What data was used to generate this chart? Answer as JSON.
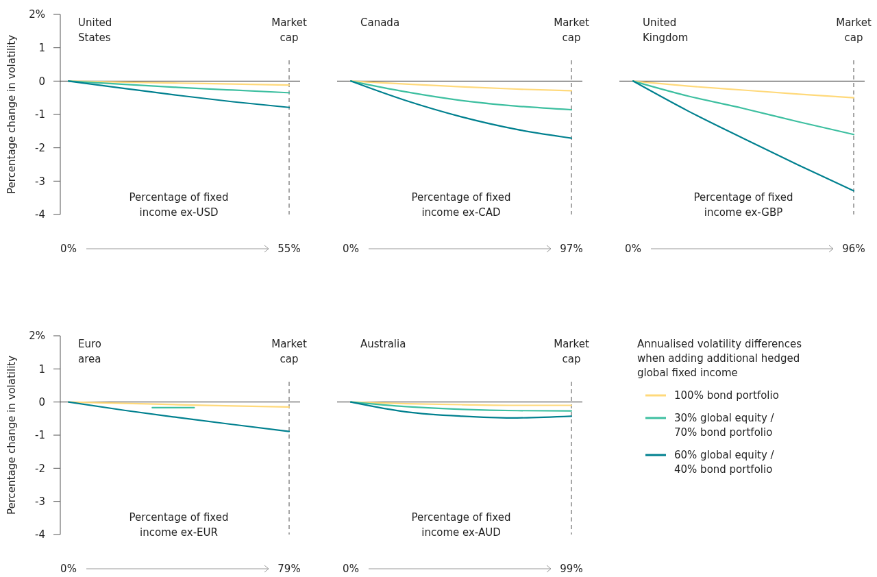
{
  "chart_data": [
    {
      "type": "line",
      "title": "United States",
      "xlabel": "Percentage of fixed income ex-USD",
      "ylabel": "Percentage change in volatility",
      "xlim": [
        0,
        55
      ],
      "xticks": [
        {
          "value": 0,
          "label": "0%"
        },
        {
          "value": 55,
          "label": "55%"
        }
      ],
      "ylim": [
        -4,
        2
      ],
      "yticks": [
        -4,
        -3,
        -2,
        -1,
        0,
        1,
        {
          "value": 2,
          "label": "2%"
        }
      ],
      "ref_lines": [
        {
          "axis": "x",
          "value": 55,
          "label": "Market cap",
          "line_style": "dashed",
          "color": "#a6a6a6"
        }
      ],
      "legend": false,
      "series": [
        {
          "color": "#ffd97a",
          "x": [
            0,
            14,
            27.5,
            41,
            55
          ],
          "values": [
            0,
            -0.03,
            -0.06,
            -0.09,
            -0.12
          ]
        },
        {
          "color": "#3dbfa0",
          "x": [
            0,
            14,
            27.5,
            41,
            55
          ],
          "values": [
            0,
            -0.1,
            -0.19,
            -0.27,
            -0.35
          ]
        },
        {
          "color": "#00808f",
          "x": [
            0,
            14,
            27.5,
            41,
            55
          ],
          "values": [
            0,
            -0.22,
            -0.43,
            -0.62,
            -0.79
          ]
        }
      ]
    },
    {
      "type": "line",
      "title": "Canada",
      "xlabel": "Percentage of fixed income ex-CAD",
      "xlim": [
        0,
        97
      ],
      "xticks": [
        {
          "value": 0,
          "label": "0%"
        },
        {
          "value": 97,
          "label": "97%"
        }
      ],
      "ylim": [
        -4,
        2
      ],
      "tick_labels": "x",
      "ref_lines": [
        {
          "axis": "x",
          "value": 97,
          "label": "Market cap",
          "line_style": "dashed",
          "color": "#a6a6a6"
        }
      ],
      "legend": false,
      "series": [
        {
          "color": "#ffd97a",
          "x": [
            0,
            24,
            48.5,
            73,
            97
          ],
          "values": [
            0,
            -0.09,
            -0.17,
            -0.24,
            -0.29
          ]
        },
        {
          "color": "#3dbfa0",
          "x": [
            0,
            24,
            48.5,
            73,
            97
          ],
          "values": [
            0,
            -0.32,
            -0.58,
            -0.75,
            -0.86
          ]
        },
        {
          "color": "#00808f",
          "x": [
            0,
            24,
            48.5,
            73,
            97
          ],
          "values": [
            0,
            -0.58,
            -1.07,
            -1.45,
            -1.71
          ]
        }
      ]
    },
    {
      "type": "line",
      "title": "United Kingdom",
      "xlabel": "Percentage of fixed income ex-GBP",
      "xlim": [
        0,
        96
      ],
      "xticks": [
        {
          "value": 0,
          "label": "0%"
        },
        {
          "value": 96,
          "label": "96%"
        }
      ],
      "ylim": [
        -4,
        2
      ],
      "tick_labels": "x",
      "ref_lines": [
        {
          "axis": "x",
          "value": 96,
          "label": "Market cap",
          "line_style": "dashed",
          "color": "#a6a6a6"
        }
      ],
      "legend": false,
      "series": [
        {
          "color": "#ffd97a",
          "x": [
            0,
            24,
            48,
            72,
            96
          ],
          "values": [
            0,
            -0.15,
            -0.27,
            -0.39,
            -0.5
          ]
        },
        {
          "color": "#3dbfa0",
          "x": [
            0,
            24,
            48,
            72,
            96
          ],
          "values": [
            0,
            -0.45,
            -0.82,
            -1.22,
            -1.6
          ]
        },
        {
          "color": "#00808f",
          "x": [
            0,
            24,
            48,
            72,
            96
          ],
          "values": [
            0,
            -0.9,
            -1.72,
            -2.52,
            -3.29
          ]
        }
      ]
    },
    {
      "type": "line",
      "title": "Euro area",
      "xlabel": "Percentage of fixed income ex-EUR",
      "ylabel": "Percentage change in volatility",
      "xlim": [
        0,
        79
      ],
      "xticks": [
        {
          "value": 0,
          "label": "0%"
        },
        {
          "value": 79,
          "label": "79%"
        }
      ],
      "ylim": [
        -4,
        2
      ],
      "yticks": [
        -4,
        -3,
        -2,
        -1,
        0,
        1,
        {
          "value": 2,
          "label": "2%"
        }
      ],
      "ref_lines": [
        {
          "axis": "x",
          "value": 79,
          "label": "Market cap",
          "line_style": "dashed",
          "color": "#a6a6a6"
        }
      ],
      "legend": false,
      "series": [
        {
          "color": "#ffd97a",
          "x": [
            0,
            20,
            39.5,
            59,
            79
          ],
          "values": [
            0,
            -0.04,
            -0.08,
            -0.12,
            -0.15
          ]
        },
        {
          "color": "#3dbfa0",
          "x": [
            30,
            45
          ],
          "values": [
            -0.17,
            -0.17
          ]
        },
        {
          "color": "#00808f",
          "x": [
            0,
            20,
            39.5,
            59,
            79
          ],
          "values": [
            0,
            -0.25,
            -0.47,
            -0.68,
            -0.89
          ]
        }
      ]
    },
    {
      "type": "line",
      "title": "Australia",
      "xlabel": "Percentage of fixed income ex-AUD",
      "xlim": [
        0,
        99
      ],
      "xticks": [
        {
          "value": 0,
          "label": "0%"
        },
        {
          "value": 99,
          "label": "99%"
        }
      ],
      "ylim": [
        -4,
        2
      ],
      "tick_labels": "x",
      "ref_lines": [
        {
          "axis": "x",
          "value": 99,
          "label": "Market cap",
          "line_style": "dashed",
          "color": "#a6a6a6"
        }
      ],
      "legend": "right",
      "legend_title": "Annualised volatility differences when adding additional hedged global fixed income",
      "series": [
        {
          "name": "100% bond portfolio",
          "color": "#ffd97a",
          "x": [
            0,
            25,
            50,
            75,
            99
          ],
          "values": [
            0,
            -0.05,
            -0.08,
            -0.1,
            -0.1
          ]
        },
        {
          "name": "30% global equity / 70% bond portfolio",
          "color": "#3dbfa0",
          "x": [
            0,
            25,
            50,
            75,
            99
          ],
          "values": [
            0,
            -0.14,
            -0.22,
            -0.26,
            -0.27
          ]
        },
        {
          "name": "60% global equity / 40% bond portfolio",
          "color": "#00808f",
          "x": [
            0,
            25,
            50,
            72,
            99
          ],
          "values": [
            0,
            -0.3,
            -0.43,
            -0.48,
            -0.43
          ]
        }
      ]
    }
  ]
}
